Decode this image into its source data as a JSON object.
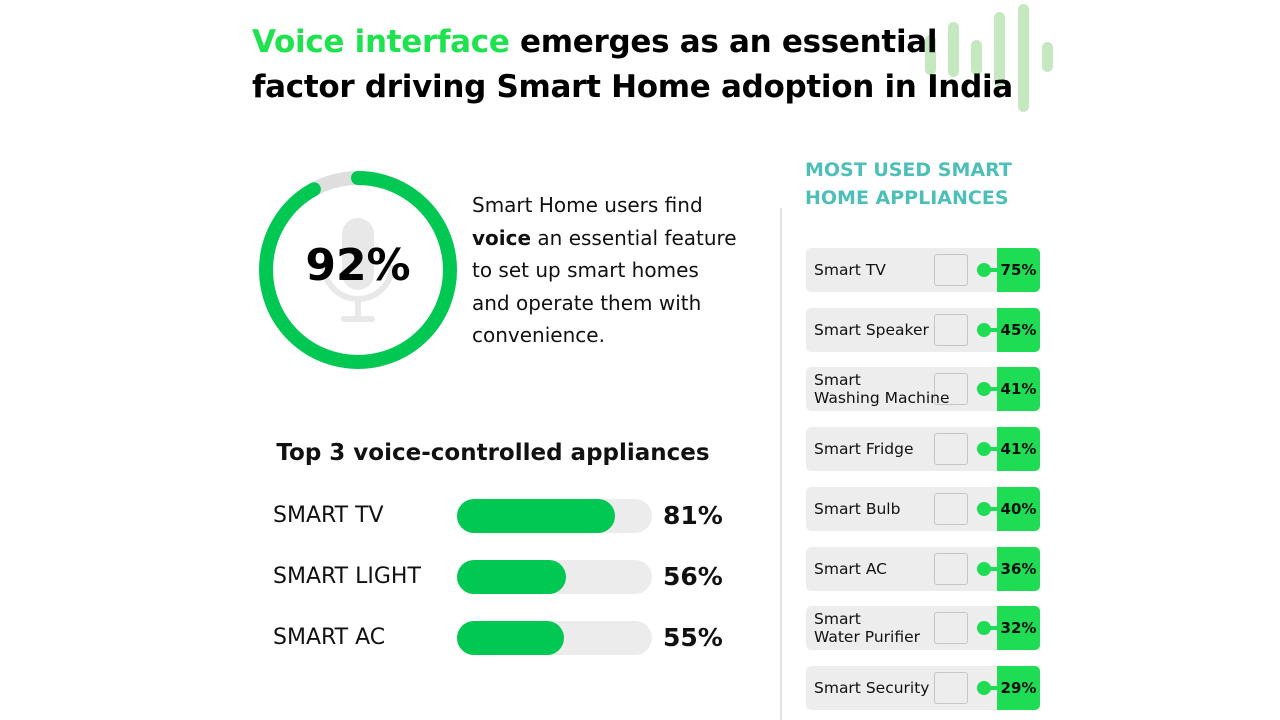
{
  "title": {
    "highlight": "Voice interface",
    "rest_line1": " emerges as an essential",
    "line2": "factor driving Smart Home adoption in India"
  },
  "hero": {
    "value": "92%",
    "fraction": 0.92,
    "desc_pre": "Smart Home users find ",
    "desc_bold": "voice",
    "desc_post": " an essential feature to set up smart homes and operate them with convenience."
  },
  "colors": {
    "accent": "#1ee24e",
    "bar": "#00c853",
    "teal": "#4dbfb8",
    "track": "#ececec"
  },
  "chart_data": [
    {
      "type": "bar",
      "title": "Top 3 voice-controlled appliances",
      "categories": [
        "SMART TV",
        "SMART LIGHT",
        "SMART AC"
      ],
      "values": [
        81,
        56,
        55
      ],
      "labels": [
        "81%",
        "56%",
        "55%"
      ],
      "ylim": [
        0,
        100
      ]
    },
    {
      "type": "bar",
      "title": "MOST USED SMART HOME APPLIANCES",
      "categories": [
        "Smart TV",
        "Smart Speaker",
        "Smart Washing Machine",
        "Smart Fridge",
        "Smart Bulb",
        "Smart AC",
        "Smart Water Purifier",
        "Smart Security"
      ],
      "label_lines": [
        [
          "Smart TV"
        ],
        [
          "Smart Speaker"
        ],
        [
          "Smart",
          "Washing Machine"
        ],
        [
          "Smart Fridge"
        ],
        [
          "Smart Bulb"
        ],
        [
          "Smart AC"
        ],
        [
          "Smart",
          "Water Purifier"
        ],
        [
          "Smart Security"
        ]
      ],
      "icons": [
        "tv-icon",
        "speaker-icon",
        "washing-machine-icon",
        "fridge-icon",
        "bulb-icon",
        "ac-icon",
        "water-purifier-icon",
        "security-lock-icon"
      ],
      "values": [
        75,
        45,
        41,
        41,
        40,
        36,
        32,
        29
      ],
      "labels": [
        "75%",
        "45%",
        "41%",
        "41%",
        "40%",
        "36%",
        "32%",
        "29%"
      ]
    }
  ]
}
